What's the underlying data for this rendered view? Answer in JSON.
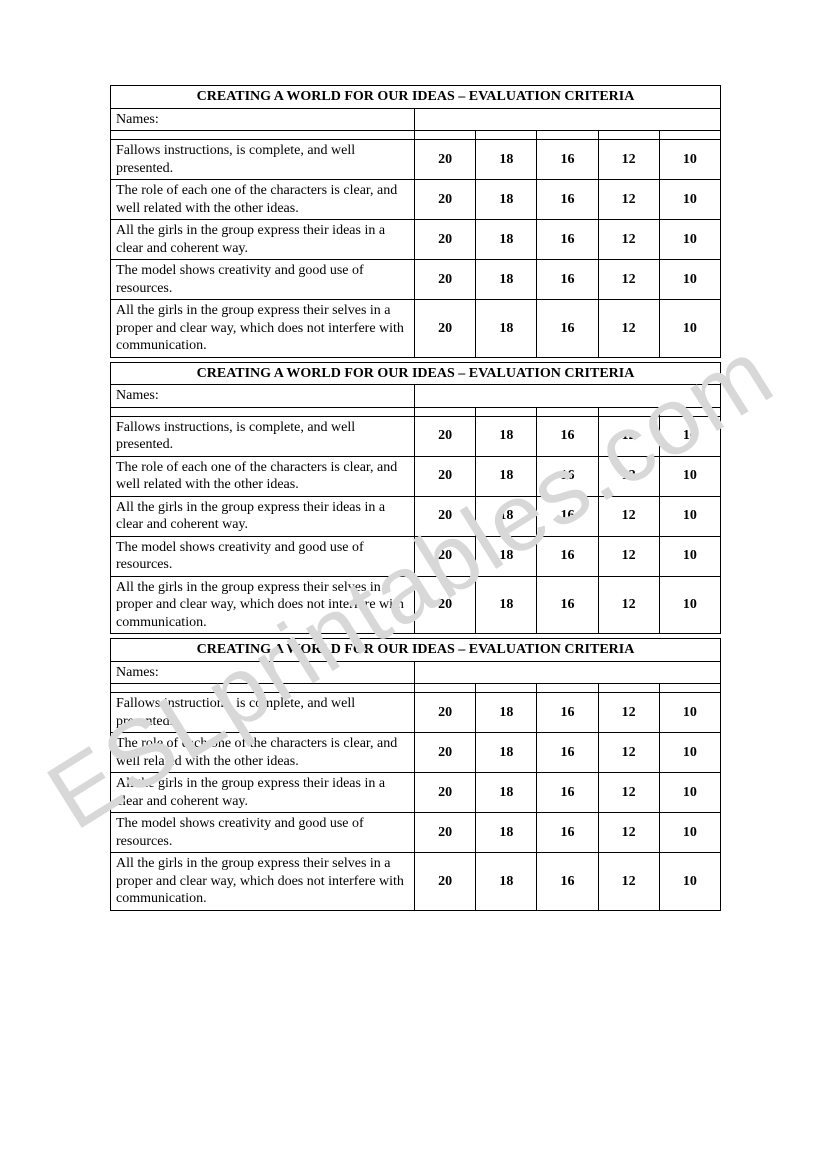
{
  "watermark": "ESLprintables.com",
  "rubric": {
    "title": "CREATING A WORLD FOR OUR IDEAS – EVALUATION CRITERIA",
    "names_label": "Names:",
    "scores": [
      "20",
      "18",
      "16",
      "12",
      "10"
    ],
    "criteria": [
      "Fallows instructions, is complete, and well presented.",
      "The role of each one of the characters is clear, and well related with the other ideas.",
      "All the girls in the group express their ideas in a clear and coherent way.",
      "The model shows creativity and good use of resources.",
      "All the girls in the group express their selves in a proper and clear way, which does not interfere with communication."
    ]
  }
}
